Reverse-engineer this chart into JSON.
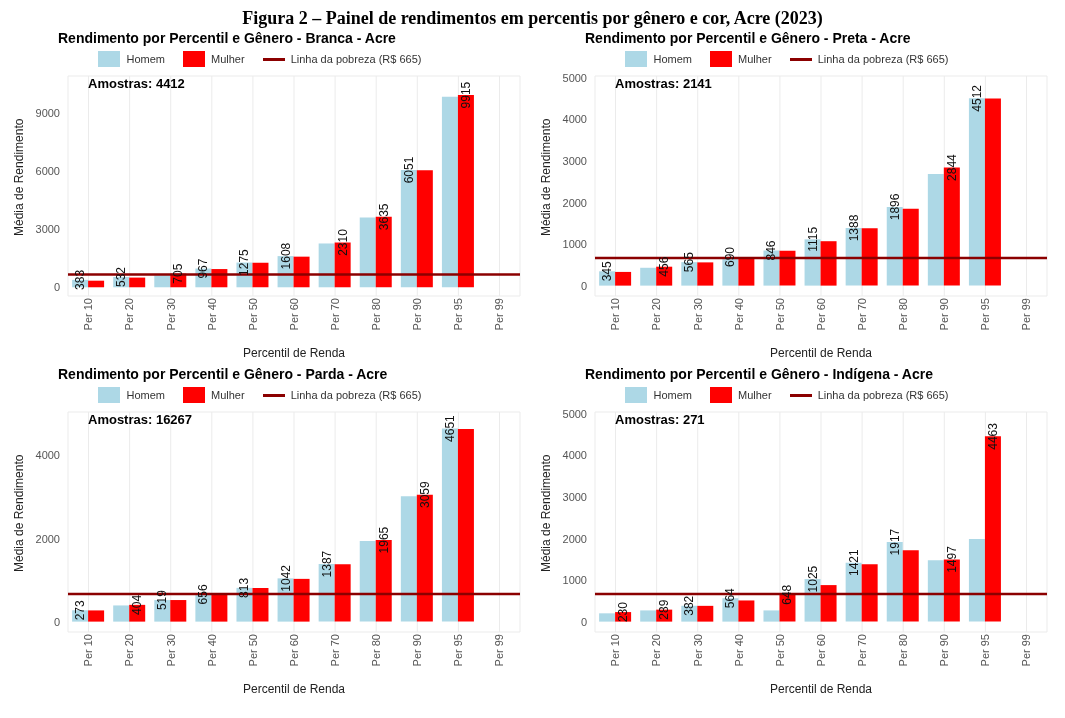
{
  "chart_data": [
    {
      "type": "bar",
      "title": "Rendimento por Percentil e Gênero - Branca - Acre",
      "xlabel": "Percentil de Renda",
      "ylabel": "Média de Rendimento",
      "categories": [
        "Per 10",
        "Per 20",
        "Per 30",
        "Per 40",
        "Per 50",
        "Per 60",
        "Per 70",
        "Per 80",
        "Per 90",
        "Per 95",
        "Per 99"
      ],
      "series": [
        {
          "name": "Homem",
          "color": "#add8e6",
          "values": [
            383,
            532,
            620,
            967,
            1275,
            1608,
            2260,
            3600,
            6051,
            9830,
            null
          ],
          "value_labels": [
            "383",
            "532",
            null,
            "967",
            "1275",
            "1608",
            null,
            null,
            "6051",
            null,
            null
          ]
        },
        {
          "name": "Mulher",
          "color": "#ff0000",
          "values": [
            340,
            500,
            705,
            940,
            1260,
            1580,
            2310,
            3635,
            6040,
            9915,
            null
          ],
          "value_labels": [
            null,
            null,
            "705",
            null,
            null,
            null,
            "2310",
            "3635",
            null,
            "9915",
            null
          ]
        }
      ],
      "ylim": [
        -450,
        10900
      ],
      "yticks": [
        0,
        3000,
        6000,
        9000
      ],
      "grid": true,
      "legend": "top",
      "ref_lines": [
        {
          "axis": "y",
          "value": 665,
          "label": "Linha da pobreza (R$ 665)",
          "color": "#8b0000"
        }
      ],
      "annotations": [
        "Amostras: 4412",
        "Figura 2 – Painel de rendimentos em percentis por gênero e cor, Acre (2023)"
      ]
    },
    {
      "type": "bar",
      "title": "Rendimento por Percentil e Gênero - Preta - Acre",
      "xlabel": "Percentil de Renda",
      "ylabel": "Média de Rendimento",
      "categories": [
        "Per 10",
        "Per 20",
        "Per 30",
        "Per 40",
        "Per 50",
        "Per 60",
        "Per 70",
        "Per 80",
        "Per 90",
        "Per 95",
        "Per 99"
      ],
      "series": [
        {
          "name": "Homem",
          "color": "#add8e6",
          "values": [
            345,
            430,
            565,
            690,
            846,
            1115,
            1388,
            1896,
            2690,
            4512,
            null
          ],
          "value_labels": [
            "345",
            null,
            "565",
            "690",
            "846",
            "1115",
            "1388",
            "1896",
            null,
            "4512",
            null
          ]
        },
        {
          "name": "Mulher",
          "color": "#ff0000",
          "values": [
            330,
            456,
            560,
            680,
            840,
            1070,
            1380,
            1850,
            2844,
            4510,
            null
          ],
          "value_labels": [
            null,
            "456",
            null,
            null,
            null,
            null,
            null,
            null,
            "2844",
            null,
            null
          ]
        }
      ],
      "ylim": [
        -250,
        5050
      ],
      "yticks": [
        0,
        1000,
        2000,
        3000,
        4000,
        5000
      ],
      "grid": true,
      "legend": "top",
      "ref_lines": [
        {
          "axis": "y",
          "value": 665,
          "label": "Linha da pobreza (R$ 665)",
          "color": "#8b0000"
        }
      ],
      "annotations": [
        "Amostras: 2141"
      ]
    },
    {
      "type": "bar",
      "title": "Rendimento por Percentil e Gênero - Parda - Acre",
      "xlabel": "Percentil de Renda",
      "ylabel": "Média de Rendimento",
      "categories": [
        "Per 10",
        "Per 20",
        "Per 30",
        "Per 40",
        "Per 50",
        "Per 60",
        "Per 70",
        "Per 80",
        "Per 90",
        "Per 95",
        "Per 99"
      ],
      "series": [
        {
          "name": "Homem",
          "color": "#add8e6",
          "values": [
            273,
            390,
            519,
            656,
            813,
            1042,
            1387,
            1940,
            3020,
            4651,
            null
          ],
          "value_labels": [
            "273",
            null,
            "519",
            "656",
            "813",
            "1042",
            "1387",
            null,
            null,
            "4651",
            null
          ]
        },
        {
          "name": "Mulher",
          "color": "#ff0000",
          "values": [
            270,
            404,
            520,
            650,
            810,
            1030,
            1380,
            1965,
            3059,
            4640,
            null
          ],
          "value_labels": [
            null,
            "404",
            null,
            null,
            null,
            null,
            null,
            "1965",
            "3059",
            null,
            null
          ]
        }
      ],
      "ylim": [
        -250,
        5050
      ],
      "yticks": [
        0,
        2000,
        4000
      ],
      "grid": true,
      "legend": "top",
      "ref_lines": [
        {
          "axis": "y",
          "value": 665,
          "label": "Linha da pobreza (R$ 665)",
          "color": "#8b0000"
        }
      ],
      "annotations": [
        "Amostras: 16267"
      ]
    },
    {
      "type": "bar",
      "title": "Rendimento por Percentil e Gênero - Indígena - Acre",
      "xlabel": "Percentil de Renda",
      "ylabel": "Média de Rendimento",
      "categories": [
        "Per 10",
        "Per 20",
        "Per 30",
        "Per 40",
        "Per 50",
        "Per 60",
        "Per 70",
        "Per 80",
        "Per 90",
        "Per 95",
        "Per 99"
      ],
      "series": [
        {
          "name": "Homem",
          "color": "#add8e6",
          "values": [
            200,
            270,
            382,
            564,
            270,
            1025,
            1421,
            1917,
            1480,
            1990,
            null
          ],
          "value_labels": [
            null,
            null,
            "382",
            "564",
            null,
            "1025",
            "1421",
            "1917",
            null,
            null,
            null
          ]
        },
        {
          "name": "Mulher",
          "color": "#ff0000",
          "values": [
            230,
            289,
            380,
            510,
            648,
            880,
            1380,
            1720,
            1497,
            4463,
            null
          ],
          "value_labels": [
            "230",
            "289",
            null,
            null,
            "648",
            null,
            null,
            null,
            "1497",
            "4463",
            null
          ]
        }
      ],
      "ylim": [
        -250,
        5050
      ],
      "yticks": [
        0,
        1000,
        2000,
        3000,
        4000,
        5000
      ],
      "grid": true,
      "legend": "top",
      "ref_lines": [
        {
          "axis": "y",
          "value": 665,
          "label": "Linha da pobreza (R$ 665)",
          "color": "#8b0000"
        }
      ],
      "annotations": [
        "Amostras: 271"
      ]
    }
  ]
}
